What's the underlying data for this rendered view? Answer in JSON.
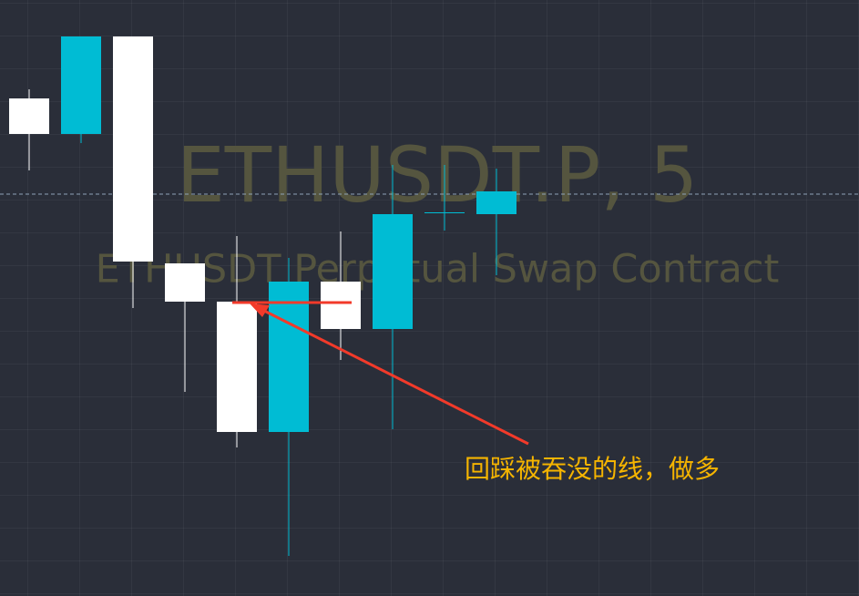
{
  "chart_data": {
    "type": "candlestick",
    "title": "ETHUSDT.P, 5",
    "subtitle": "ETHUSDT Perpetual Swap Contract",
    "annotation": "回踩被吞没的线，做多",
    "categories": [
      null,
      null,
      null,
      null,
      null,
      null,
      null,
      null,
      null,
      null
    ],
    "open": [
      546,
      507,
      614,
      365,
      323,
      180,
      345,
      293,
      421,
      419
    ],
    "high": [
      556,
      614,
      614,
      365,
      395,
      371,
      400,
      473,
      473,
      469
    ],
    "low": [
      467,
      497,
      316,
      224,
      163,
      44,
      259,
      183,
      401,
      352
    ],
    "close": [
      507,
      614,
      367,
      323,
      180,
      345,
      293,
      419,
      421,
      444
    ],
    "up_color": "#00bcd4",
    "down_color": "#ffffff",
    "price_line": 441,
    "ylim": [
      0,
      654
    ]
  }
}
